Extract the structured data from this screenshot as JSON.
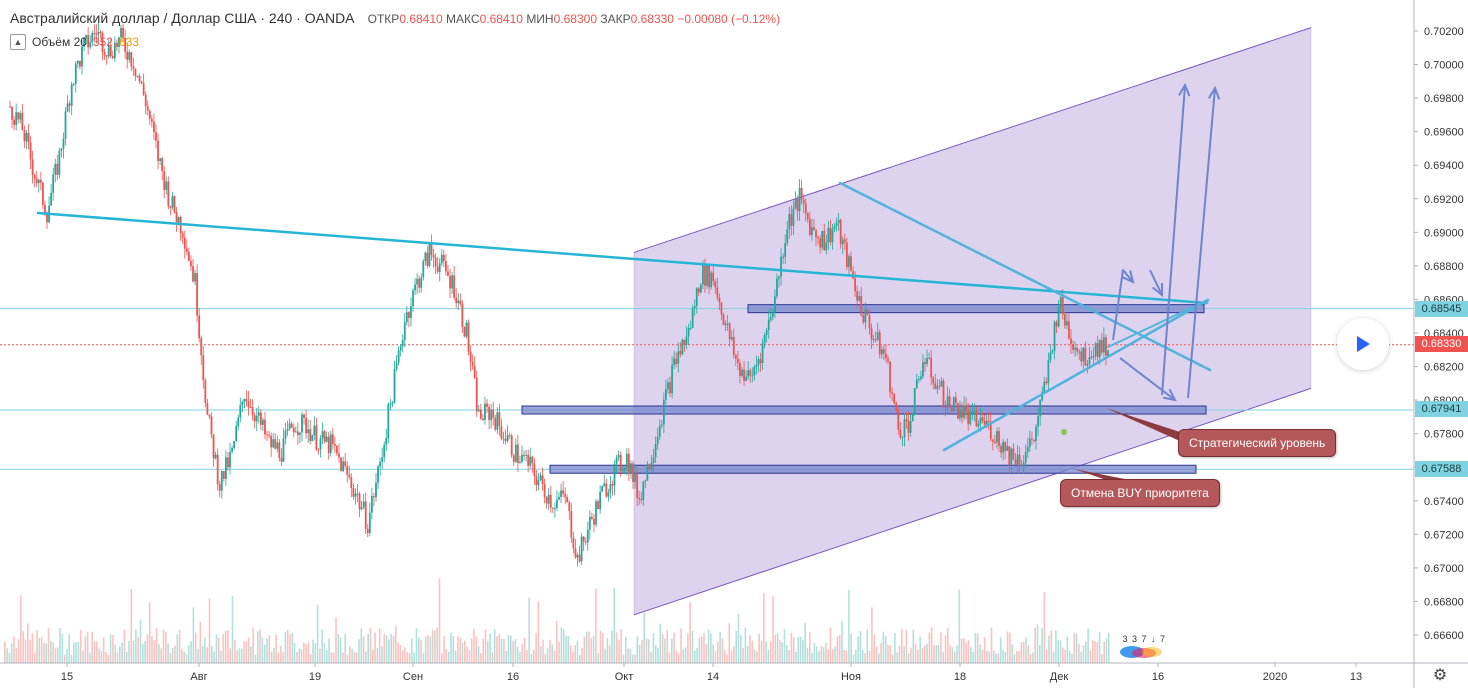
{
  "header": {
    "symbol": "Австралийский доллар / Доллар США · 240 · OANDA",
    "open_label": "ОТКР",
    "open": "0.68410",
    "high_label": "МАКС",
    "high": "0.68410",
    "low_label": "МИН",
    "low": "0.68300",
    "close_label": "ЗАКР",
    "close": "0.68330",
    "change": "−0.00080 (−0.12%)"
  },
  "volume": {
    "label": "Объём 20",
    "value": "352",
    "ma": "633"
  },
  "price_markers": [
    {
      "value": "0.68545",
      "color": "#7fd3e0"
    },
    {
      "value": "0.68330",
      "color": "#ef5350"
    },
    {
      "value": "0.67941",
      "color": "#7fd3e0"
    },
    {
      "value": "0.67588",
      "color": "#7fd3e0"
    }
  ],
  "annotations": {
    "strategic_level": "Стратегический уровень",
    "cancel_buy": "Отмена BUY приоритета"
  },
  "icons": {
    "play": "play-icon",
    "settings": "gear-icon",
    "collapse": "chevron-up-icon",
    "logo": "tradingview-logo-icon"
  },
  "logo_text": "3 3 7 ↓ 7",
  "colors": {
    "bull": "#26a69a",
    "bear": "#ef5350",
    "channel": "#d1c4e9",
    "channel_line": "#7e57c2",
    "trendline": "#00bcd4"
  },
  "chart_data": {
    "type": "candlestick",
    "title": "Австралийский доллар / Доллар США · 240 · OANDA",
    "ylim": [
      0.6648,
      0.703
    ],
    "y_ticks": [
      "0.70200",
      "0.70000",
      "0.69800",
      "0.69600",
      "0.69400",
      "0.69200",
      "0.69000",
      "0.68800",
      "0.68600",
      "0.68400",
      "0.68200",
      "0.68000",
      "0.67800",
      "0.67600",
      "0.67400",
      "0.67200",
      "0.67000",
      "0.66800",
      "0.66600"
    ],
    "x_ticks": [
      "15",
      "Авг",
      "19",
      "Сен",
      "16",
      "Окт",
      "14",
      "Ноя",
      "18",
      "Дек",
      "16",
      "2020",
      "13"
    ],
    "series": [
      {
        "values": [
          0.6975,
          0.6962,
          0.6935,
          0.6912,
          0.6945,
          0.699,
          0.701,
          0.702,
          0.7008,
          0.7015,
          0.7002,
          0.6978,
          0.6945,
          0.6918,
          0.6902,
          0.687,
          0.679,
          0.675,
          0.6768,
          0.6805,
          0.679,
          0.6774,
          0.677,
          0.6786,
          0.6785,
          0.6776,
          0.6773,
          0.676,
          0.6745,
          0.6727,
          0.6762,
          0.6805,
          0.6848,
          0.687,
          0.6888,
          0.688,
          0.6868,
          0.684,
          0.679,
          0.6793,
          0.678,
          0.6768,
          0.6762,
          0.675,
          0.6739,
          0.6742,
          0.6705,
          0.6726,
          0.6744,
          0.6758,
          0.6766,
          0.6742,
          0.6768,
          0.6797,
          0.6825,
          0.684,
          0.6875,
          0.6873,
          0.6845,
          0.682,
          0.6812,
          0.6832,
          0.6862,
          0.6905,
          0.692,
          0.6902,
          0.6895,
          0.6905,
          0.688,
          0.6855,
          0.6838,
          0.6825,
          0.6782,
          0.6788,
          0.6825,
          0.6812,
          0.6798,
          0.6795,
          0.6787,
          0.6787,
          0.6778,
          0.6768,
          0.6765,
          0.6778,
          0.6812,
          0.6858,
          0.6838,
          0.6825,
          0.6832,
          0.6833
        ]
      }
    ],
    "channel": {
      "upper": [
        [
          0.6888,
          0.7022
        ]
      ],
      "lower": [
        [
          0.6672,
          0.6807
        ]
      ]
    },
    "levels": [
      "0.68545",
      "0.67941",
      "0.67588"
    ]
  }
}
